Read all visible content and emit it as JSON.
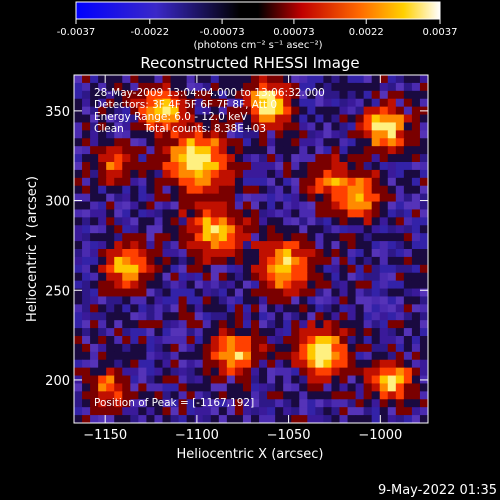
{
  "colorbar": {
    "min": -0.0037,
    "max": 0.0037,
    "ticks": [
      "-0.0037",
      "-0.0022",
      "-0.00073",
      "0.00073",
      "0.0022",
      "0.0037"
    ],
    "tick_values": [
      -0.0037,
      -0.0022,
      -0.00073,
      0.00073,
      0.0022,
      0.0037
    ],
    "units": "(photons cm⁻² s⁻¹ asec⁻²)",
    "colors": [
      "#0000ff",
      "#3020c8",
      "#000000",
      "#b00000",
      "#ff6000",
      "#ffd000",
      "#ffffff"
    ]
  },
  "chart_data": {
    "type": "heatmap",
    "title": "Reconstructed RHESSI Image",
    "xlabel": "Heliocentric X (arcsec)",
    "ylabel": "Heliocentric Y (arcsec)",
    "xlim": [
      -1167,
      -974
    ],
    "ylim": [
      176,
      370
    ],
    "xticks": [
      -1150,
      -1100,
      -1050,
      -1000
    ],
    "yticks": [
      200,
      250,
      300,
      350
    ],
    "xtick_labels": [
      "−1150",
      "−1100",
      "−1050",
      "−1000"
    ],
    "ytick_labels": [
      "200",
      "250",
      "300",
      "350"
    ],
    "annotations": [
      "28-May-2009 13:04:04.000 to 13:06:32.000",
      "Detectors: 3F 4F 5F 6F 7F 8F, Att 0",
      "Energy Range: 6.0 - 12.0 keV",
      "Clean",
      "Total counts: 8.38E+03"
    ],
    "peak_label": "Position of Peak = [-1167,192]",
    "peak": [
      -1167,
      192
    ],
    "grid": false
  },
  "footer": {
    "timestamp": "9-May-2022 01:35"
  }
}
